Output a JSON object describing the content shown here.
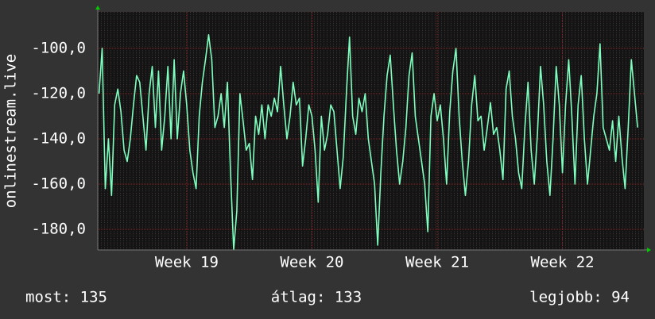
{
  "chart_data": {
    "type": "line",
    "y_label": "onlinestream.live",
    "line_color": "#7fffbf",
    "grid": true,
    "xlim": [
      18.29,
      22.65
    ],
    "xticks": [
      {
        "value": 19,
        "label": "Week 19"
      },
      {
        "value": 20,
        "label": "Week 20"
      },
      {
        "value": 21,
        "label": "Week 21"
      },
      {
        "value": 22,
        "label": "Week 22"
      }
    ],
    "ylim": [
      -189.1,
      -83.9
    ],
    "yticks": [
      {
        "value": -100,
        "label": "-100,0"
      },
      {
        "value": -120,
        "label": "-120,0"
      },
      {
        "value": -140,
        "label": "-140,0"
      },
      {
        "value": -160,
        "label": "-160,0"
      },
      {
        "value": -180,
        "label": "-180,0"
      }
    ],
    "x": [
      18.3,
      18.325,
      18.35,
      18.375,
      18.4,
      18.425,
      18.45,
      18.475,
      18.5,
      18.525,
      18.55,
      18.575,
      18.6,
      18.625,
      18.65,
      18.675,
      18.7,
      18.725,
      18.75,
      18.775,
      18.8,
      18.825,
      18.85,
      18.875,
      18.9,
      18.925,
      18.95,
      18.975,
      19.0,
      19.025,
      19.05,
      19.075,
      19.1,
      19.125,
      19.15,
      19.175,
      19.2,
      19.225,
      19.25,
      19.275,
      19.3,
      19.325,
      19.35,
      19.375,
      19.4,
      19.425,
      19.45,
      19.475,
      19.5,
      19.525,
      19.55,
      19.575,
      19.6,
      19.625,
      19.65,
      19.675,
      19.7,
      19.725,
      19.75,
      19.775,
      19.8,
      19.825,
      19.85,
      19.875,
      19.9,
      19.925,
      19.95,
      19.975,
      20.0,
      20.025,
      20.05,
      20.075,
      20.1,
      20.125,
      20.15,
      20.175,
      20.2,
      20.225,
      20.25,
      20.275,
      20.3,
      20.325,
      20.35,
      20.375,
      20.4,
      20.425,
      20.45,
      20.475,
      20.5,
      20.525,
      20.55,
      20.575,
      20.6,
      20.625,
      20.65,
      20.675,
      20.7,
      20.725,
      20.75,
      20.775,
      20.8,
      20.825,
      20.85,
      20.875,
      20.9,
      20.925,
      20.95,
      20.975,
      21.0,
      21.025,
      21.05,
      21.075,
      21.1,
      21.125,
      21.15,
      21.175,
      21.2,
      21.225,
      21.25,
      21.275,
      21.3,
      21.325,
      21.35,
      21.375,
      21.4,
      21.425,
      21.45,
      21.475,
      21.5,
      21.525,
      21.55,
      21.575,
      21.6,
      21.625,
      21.65,
      21.675,
      21.7,
      21.725,
      21.75,
      21.775,
      21.8,
      21.825,
      21.85,
      21.875,
      21.9,
      21.925,
      21.95,
      21.975,
      22.0,
      22.025,
      22.05,
      22.075,
      22.1,
      22.125,
      22.15,
      22.175,
      22.2,
      22.225,
      22.25,
      22.275,
      22.3,
      22.325,
      22.35,
      22.375,
      22.4,
      22.425,
      22.45,
      22.475,
      22.5,
      22.525,
      22.55,
      22.575,
      22.6
    ],
    "values": [
      -120,
      -100,
      -162,
      -140,
      -165,
      -125,
      -118,
      -128,
      -145,
      -150,
      -140,
      -125,
      -112,
      -115,
      -130,
      -145,
      -120,
      -108,
      -135,
      -110,
      -145,
      -130,
      -108,
      -140,
      -105,
      -140,
      -120,
      -110,
      -125,
      -145,
      -155,
      -162,
      -130,
      -115,
      -105,
      -94,
      -105,
      -135,
      -130,
      -120,
      -135,
      -115,
      -155,
      -189,
      -172,
      -120,
      -132,
      -145,
      -142,
      -158,
      -130,
      -138,
      -125,
      -140,
      -125,
      -130,
      -122,
      -128,
      -108,
      -125,
      -140,
      -130,
      -115,
      -125,
      -122,
      -152,
      -140,
      -125,
      -130,
      -145,
      -168,
      -130,
      -145,
      -138,
      -125,
      -128,
      -145,
      -162,
      -148,
      -120,
      -95,
      -130,
      -138,
      -122,
      -128,
      -120,
      -140,
      -150,
      -160,
      -187,
      -155,
      -130,
      -112,
      -103,
      -125,
      -145,
      -160,
      -150,
      -135,
      -112,
      -102,
      -130,
      -140,
      -150,
      -160,
      -181,
      -130,
      -120,
      -132,
      -125,
      -140,
      -160,
      -128,
      -110,
      -100,
      -130,
      -150,
      -165,
      -150,
      -125,
      -112,
      -132,
      -130,
      -145,
      -135,
      -124,
      -138,
      -135,
      -145,
      -158,
      -118,
      -110,
      -130,
      -140,
      -155,
      -162,
      -135,
      -115,
      -145,
      -160,
      -138,
      -108,
      -125,
      -150,
      -165,
      -140,
      -108,
      -125,
      -155,
      -125,
      -105,
      -130,
      -160,
      -125,
      -112,
      -140,
      -160,
      -145,
      -130,
      -120,
      -98,
      -135,
      -140,
      -145,
      -132,
      -150,
      -130,
      -148,
      -162,
      -135,
      -105,
      -120,
      -135
    ],
    "stats": {
      "current": "most: 135",
      "average": "átlag: 133",
      "best": "legjobb: 94"
    }
  }
}
